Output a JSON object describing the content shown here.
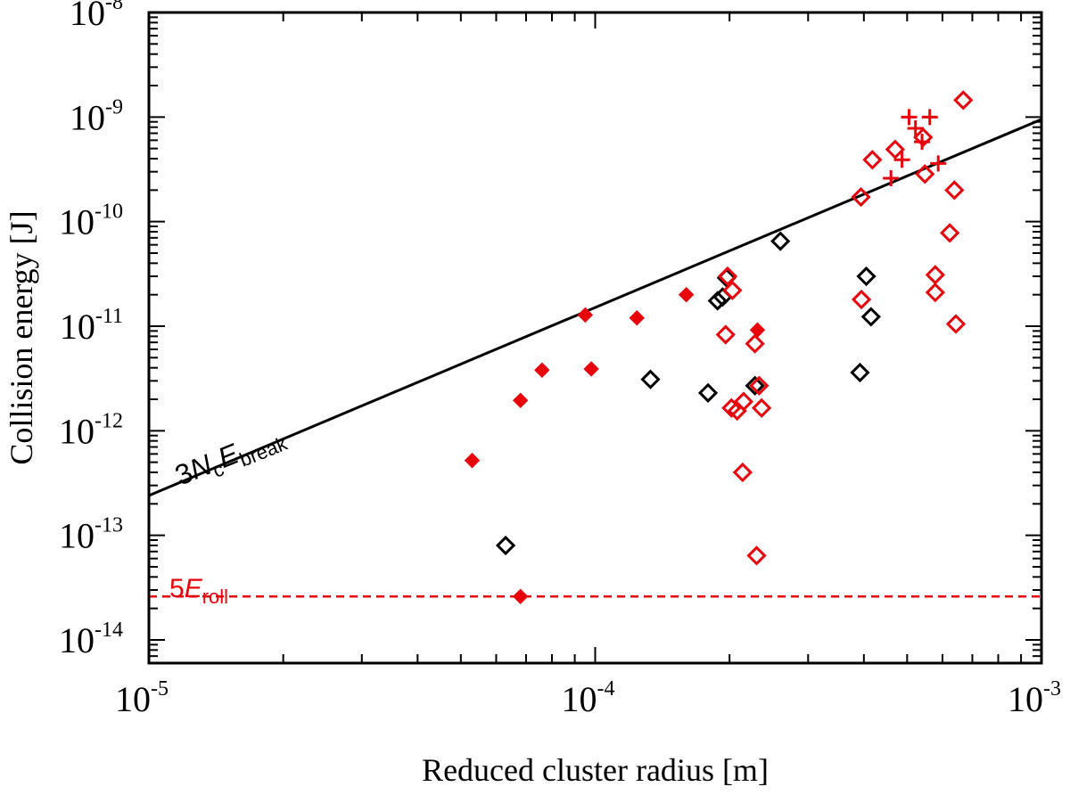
{
  "chart_data": {
    "type": "scatter",
    "xscale": "log",
    "yscale": "log",
    "xlabel": "Reduced cluster radius [m]",
    "ylabel": "Collision energy [J]",
    "xlim": [
      1e-05,
      0.001
    ],
    "ylim": [
      6e-15,
      1e-08
    ],
    "x_ticks": [
      {
        "base": "10",
        "exp": "-5"
      },
      {
        "base": "10",
        "exp": "-4"
      },
      {
        "base": "10",
        "exp": "-3"
      }
    ],
    "y_ticks": [
      {
        "base": "10",
        "exp": "-14"
      },
      {
        "base": "10",
        "exp": "-13"
      },
      {
        "base": "10",
        "exp": "-12"
      },
      {
        "base": "10",
        "exp": "-11"
      },
      {
        "base": "10",
        "exp": "-10"
      },
      {
        "base": "10",
        "exp": "-9"
      },
      {
        "base": "10",
        "exp": "-8"
      }
    ],
    "lines": [
      {
        "name": "3NcEbreak",
        "color": "#000000",
        "style": "solid",
        "x": [
          1e-05,
          0.001
        ],
        "y": [
          2.4e-13,
          9.5e-10
        ],
        "label": {
          "pre": "3",
          "N": "N",
          "c": "c",
          "E": "E",
          "sub": "break"
        }
      },
      {
        "name": "5Eroll",
        "color": "#e8000b",
        "style": "dashed",
        "x": [
          1e-05,
          0.001
        ],
        "y": [
          2.6e-14,
          2.6e-14
        ],
        "label": {
          "pre": "5",
          "E": "E",
          "sub": "roll"
        }
      }
    ],
    "series": [
      {
        "name": "black open diamonds",
        "marker": "diamond-open",
        "color": "#000000",
        "points": [
          [
            6.3e-05,
            8e-14
          ],
          [
            0.000133,
            3.1e-12
          ],
          [
            0.000179,
            2.3e-12
          ],
          [
            0.000188,
            1.75e-11
          ],
          [
            0.000193,
            1.9e-11
          ],
          [
            0.000197,
            2.9e-11
          ],
          [
            0.000228,
            2.7e-12
          ],
          [
            0.00026,
            6.5e-11
          ],
          [
            0.000392,
            3.6e-12
          ],
          [
            0.000405,
            3e-11
          ],
          [
            0.000415,
            1.23e-11
          ]
        ]
      },
      {
        "name": "red open diamonds",
        "marker": "diamond-open",
        "color": "#e8000b",
        "points": [
          [
            0.000196,
            8.3e-12
          ],
          [
            0.000198,
            3e-11
          ],
          [
            0.000203,
            2.2e-11
          ],
          [
            0.000202,
            1.65e-12
          ],
          [
            0.000208,
            1.55e-12
          ],
          [
            0.000215,
            1.9e-12
          ],
          [
            0.000214,
            4e-13
          ],
          [
            0.000228,
            6.8e-12
          ],
          [
            0.000233,
            2.7e-12
          ],
          [
            0.000236,
            1.65e-12
          ],
          [
            0.00023,
            6.4e-14
          ],
          [
            0.000394,
            1.72e-10
          ],
          [
            0.000395,
            1.8e-11
          ],
          [
            0.000418,
            3.9e-10
          ],
          [
            0.00047,
            4.9e-10
          ],
          [
            0.000543,
            6.4e-10
          ],
          [
            0.000548,
            2.85e-10
          ],
          [
            0.000578,
            3.1e-11
          ],
          [
            0.000578,
            2.1e-11
          ],
          [
            0.000623,
            7.8e-11
          ],
          [
            0.000638,
            2e-10
          ],
          [
            0.000643,
            1.05e-11
          ],
          [
            0.000668,
            1.45e-09
          ]
        ]
      },
      {
        "name": "red filled diamonds",
        "marker": "diamond-filled",
        "color": "#e8000b",
        "points": [
          [
            5.3e-05,
            5.2e-13
          ],
          [
            6.8e-05,
            1.95e-12
          ],
          [
            6.8e-05,
            2.6e-14
          ],
          [
            7.6e-05,
            3.8e-12
          ],
          [
            9.5e-05,
            1.28e-11
          ],
          [
            9.8e-05,
            3.9e-12
          ],
          [
            0.000124,
            1.2e-11
          ],
          [
            0.00016,
            2e-11
          ],
          [
            0.000231,
            9.2e-12
          ]
        ]
      },
      {
        "name": "red plus",
        "marker": "plus",
        "color": "#e8000b",
        "points": [
          [
            0.00046,
            2.6e-10
          ],
          [
            0.000487,
            3.9e-10
          ],
          [
            0.000505,
            1e-09
          ],
          [
            0.000522,
            7.8e-10
          ],
          [
            0.00054,
            5.8e-10
          ],
          [
            0.000562,
            1e-09
          ],
          [
            0.000587,
            3.6e-10
          ]
        ]
      }
    ]
  }
}
